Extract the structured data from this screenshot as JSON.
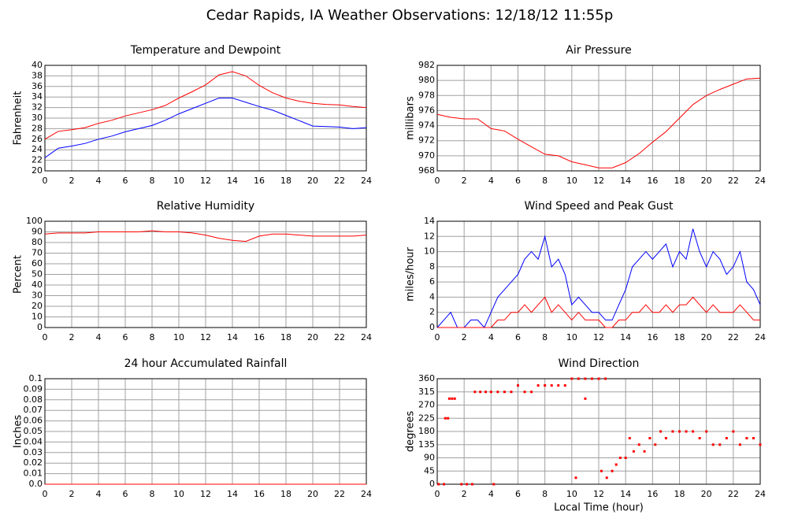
{
  "title": "Cedar Rapids, IA Weather Observations: 12/18/12 11:55p",
  "chart_data": [
    {
      "type": "line",
      "title": "Temperature and Dewpoint",
      "ylabel": "Fahrenheit",
      "x": [
        0,
        1,
        2,
        3,
        4,
        5,
        6,
        7,
        8,
        9,
        10,
        11,
        12,
        13,
        14,
        15,
        16,
        17,
        18,
        19,
        20,
        21,
        22,
        23,
        24
      ],
      "series": [
        {
          "color": "#ff0000",
          "values": [
            26,
            27.5,
            27.8,
            28.2,
            29,
            29.6,
            30.4,
            31,
            31.6,
            32.4,
            33.8,
            35,
            36.3,
            38.2,
            38.8,
            38,
            36.2,
            34.8,
            33.8,
            33.2,
            32.8,
            32.6,
            32.5,
            32.2,
            32
          ]
        },
        {
          "color": "#0000ff",
          "values": [
            22.5,
            24.3,
            24.7,
            25.2,
            26,
            26.6,
            27.4,
            28,
            28.6,
            29.6,
            30.8,
            31.8,
            32.8,
            33.8,
            33.8,
            33,
            32.2,
            31.5,
            30.5,
            29.5,
            28.5,
            28.4,
            28.3,
            28,
            28.2
          ]
        }
      ],
      "xlim": [
        0,
        24
      ],
      "xticks": [
        0,
        2,
        4,
        6,
        8,
        10,
        12,
        14,
        16,
        18,
        20,
        22,
        24
      ],
      "ylim": [
        20,
        40
      ],
      "yticks": [
        20,
        22,
        24,
        26,
        28,
        30,
        32,
        34,
        36,
        38,
        40
      ],
      "grid": true
    },
    {
      "type": "line",
      "title": "Air Pressure",
      "ylabel": "millibars",
      "x": [
        0,
        1,
        2,
        3,
        4,
        5,
        6,
        7,
        8,
        9,
        10,
        11,
        12,
        13,
        14,
        15,
        16,
        17,
        18,
        19,
        20,
        21,
        22,
        23,
        24
      ],
      "series": [
        {
          "color": "#ff0000",
          "values": [
            975.5,
            975.1,
            974.9,
            974.9,
            973.6,
            973.3,
            972.2,
            971.2,
            970.2,
            970,
            969.2,
            968.8,
            968.4,
            968.4,
            969.1,
            970.3,
            971.8,
            973.2,
            975,
            976.8,
            978,
            978.8,
            979.5,
            980.2,
            980.3
          ]
        }
      ],
      "xlim": [
        0,
        24
      ],
      "xticks": [
        0,
        2,
        4,
        6,
        8,
        10,
        12,
        14,
        16,
        18,
        20,
        22,
        24
      ],
      "ylim": [
        968,
        982
      ],
      "yticks": [
        968,
        970,
        972,
        974,
        976,
        978,
        980,
        982
      ],
      "grid": true
    },
    {
      "type": "line",
      "title": "Relative Humidity",
      "ylabel": "Percent",
      "x": [
        0,
        1,
        2,
        3,
        4,
        5,
        6,
        7,
        8,
        9,
        10,
        11,
        12,
        13,
        14,
        15,
        16,
        17,
        18,
        19,
        20,
        21,
        22,
        23,
        24
      ],
      "series": [
        {
          "color": "#ff0000",
          "values": [
            88,
            89,
            89,
            89,
            90,
            90,
            90,
            90,
            91,
            90,
            90,
            89,
            87,
            84,
            82,
            81,
            86,
            88,
            88,
            87,
            86,
            86,
            86,
            86,
            87
          ]
        }
      ],
      "xlim": [
        0,
        24
      ],
      "xticks": [
        0,
        2,
        4,
        6,
        8,
        10,
        12,
        14,
        16,
        18,
        20,
        22,
        24
      ],
      "ylim": [
        0,
        100
      ],
      "yticks": [
        0,
        10,
        20,
        30,
        40,
        50,
        60,
        70,
        80,
        90,
        100
      ],
      "grid": true
    },
    {
      "type": "line",
      "title": "Wind Speed and Peak Gust",
      "ylabel": "miles/hour",
      "x": [
        0,
        0.5,
        1,
        1.5,
        2,
        2.5,
        3,
        3.5,
        4,
        4.5,
        5,
        5.5,
        6,
        6.5,
        7,
        7.5,
        8,
        8.5,
        9,
        9.5,
        10,
        10.5,
        11,
        11.5,
        12,
        12.5,
        13,
        13.5,
        14,
        14.5,
        15,
        15.5,
        16,
        16.5,
        17,
        17.5,
        18,
        18.5,
        19,
        19.5,
        20,
        20.5,
        21,
        21.5,
        22,
        22.5,
        23,
        23.5,
        24
      ],
      "series": [
        {
          "color": "#0000ff",
          "values": [
            0,
            1,
            2,
            0,
            0,
            1,
            1,
            0,
            2,
            4,
            5,
            6,
            7,
            9,
            10,
            9,
            12,
            8,
            9,
            7,
            3,
            4,
            3,
            2,
            2,
            1,
            1,
            3,
            5,
            8,
            9,
            10,
            9,
            10,
            11,
            8,
            10,
            9,
            13,
            10,
            8,
            10,
            9,
            7,
            8,
            10,
            6,
            5,
            3
          ]
        },
        {
          "color": "#ff0000",
          "values": [
            0,
            0,
            0,
            0,
            0,
            0,
            0,
            0,
            0,
            1,
            1,
            2,
            2,
            3,
            2,
            3,
            4,
            2,
            3,
            2,
            1,
            2,
            1,
            1,
            1,
            0,
            0,
            1,
            1,
            2,
            2,
            3,
            2,
            2,
            3,
            2,
            3,
            3,
            4,
            3,
            2,
            3,
            2,
            2,
            2,
            3,
            2,
            1,
            1
          ]
        }
      ],
      "xlim": [
        0,
        24
      ],
      "xticks": [
        0,
        2,
        4,
        6,
        8,
        10,
        12,
        14,
        16,
        18,
        20,
        22,
        24
      ],
      "ylim": [
        0,
        14
      ],
      "yticks": [
        0,
        2,
        4,
        6,
        8,
        10,
        12,
        14
      ],
      "grid": true
    },
    {
      "type": "line",
      "title": "24 hour Accumulated Rainfall",
      "ylabel": "Inches",
      "x": [
        0,
        24
      ],
      "series": [
        {
          "color": "#ff0000",
          "values": [
            0,
            0
          ]
        }
      ],
      "xlim": [
        0,
        24
      ],
      "xticks": [
        0,
        2,
        4,
        6,
        8,
        10,
        12,
        14,
        16,
        18,
        20,
        22,
        24
      ],
      "ylim": [
        0,
        0.1
      ],
      "yticks": [
        {
          "value": 0,
          "label": "0.0"
        },
        0.01,
        0.02,
        0.03,
        0.04,
        0.05,
        0.06,
        0.07,
        0.08,
        0.09,
        0.1
      ],
      "grid": true
    },
    {
      "type": "scatter",
      "title": "Wind Direction",
      "ylabel": "degrees",
      "xlabel": "Local Time (hour)",
      "x": [
        0.1,
        0.5,
        0.6,
        0.8,
        0.9,
        1.1,
        1.3,
        1.8,
        2.2,
        2.6,
        2.8,
        3.2,
        3.6,
        4,
        4.2,
        4.5,
        5,
        5.5,
        6,
        6.5,
        7,
        7.5,
        8,
        8.5,
        9,
        9.5,
        10,
        10.5,
        11,
        11.5,
        12,
        12.5,
        10.3,
        11,
        12.2,
        12.6,
        13,
        13.3,
        13.6,
        14,
        14.3,
        14.6,
        15,
        15.4,
        15.8,
        16.2,
        16.6,
        17,
        17.5,
        18,
        18.5,
        19,
        19.5,
        20,
        20.5,
        21,
        21.5,
        22,
        22.5,
        23,
        23.5,
        24
      ],
      "series": [
        {
          "color": "#ff0000",
          "values": [
            0,
            0,
            225,
            225,
            292,
            292,
            292,
            0,
            0,
            0,
            315,
            315,
            315,
            315,
            0,
            315,
            315,
            315,
            337,
            315,
            315,
            337,
            337,
            337,
            337,
            337,
            360,
            360,
            360,
            360,
            360,
            360,
            22,
            292,
            45,
            22,
            45,
            67,
            90,
            90,
            157,
            112,
            135,
            112,
            157,
            135,
            180,
            157,
            180,
            180,
            180,
            180,
            157,
            180,
            135,
            135,
            157,
            180,
            135,
            157,
            157,
            135
          ]
        }
      ],
      "xlim": [
        0,
        24
      ],
      "xticks": [
        0,
        2,
        4,
        6,
        8,
        10,
        12,
        14,
        16,
        18,
        20,
        22,
        24
      ],
      "ylim": [
        0,
        360
      ],
      "yticks": [
        0,
        45,
        90,
        135,
        180,
        225,
        270,
        315,
        360
      ],
      "grid": true
    }
  ]
}
